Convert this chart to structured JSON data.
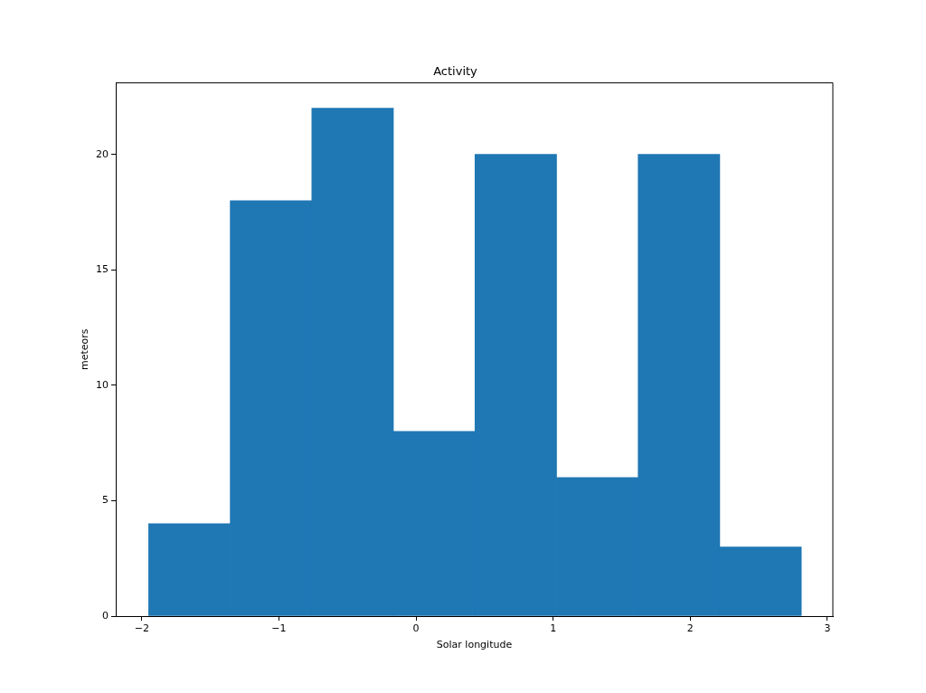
{
  "chart_data": {
    "type": "histogram",
    "title": "Activity",
    "xlabel": "Solar longitude",
    "ylabel": "meteors",
    "bins": [
      -1.95,
      -1.355,
      -0.76,
      -0.165,
      0.43,
      1.025,
      1.62,
      2.215,
      2.81
    ],
    "values": [
      4,
      18,
      22,
      8,
      20,
      6,
      20,
      3
    ],
    "color": "#1f77b4",
    "xlim": [
      -2.19,
      3.04
    ],
    "xticks": [
      {
        "value": -2,
        "label": "−2"
      },
      {
        "value": -1,
        "label": "−1"
      },
      0,
      1,
      2,
      3
    ],
    "ylim": [
      0,
      23.1
    ],
    "yticks": [
      0,
      5,
      10,
      15,
      20
    ]
  }
}
